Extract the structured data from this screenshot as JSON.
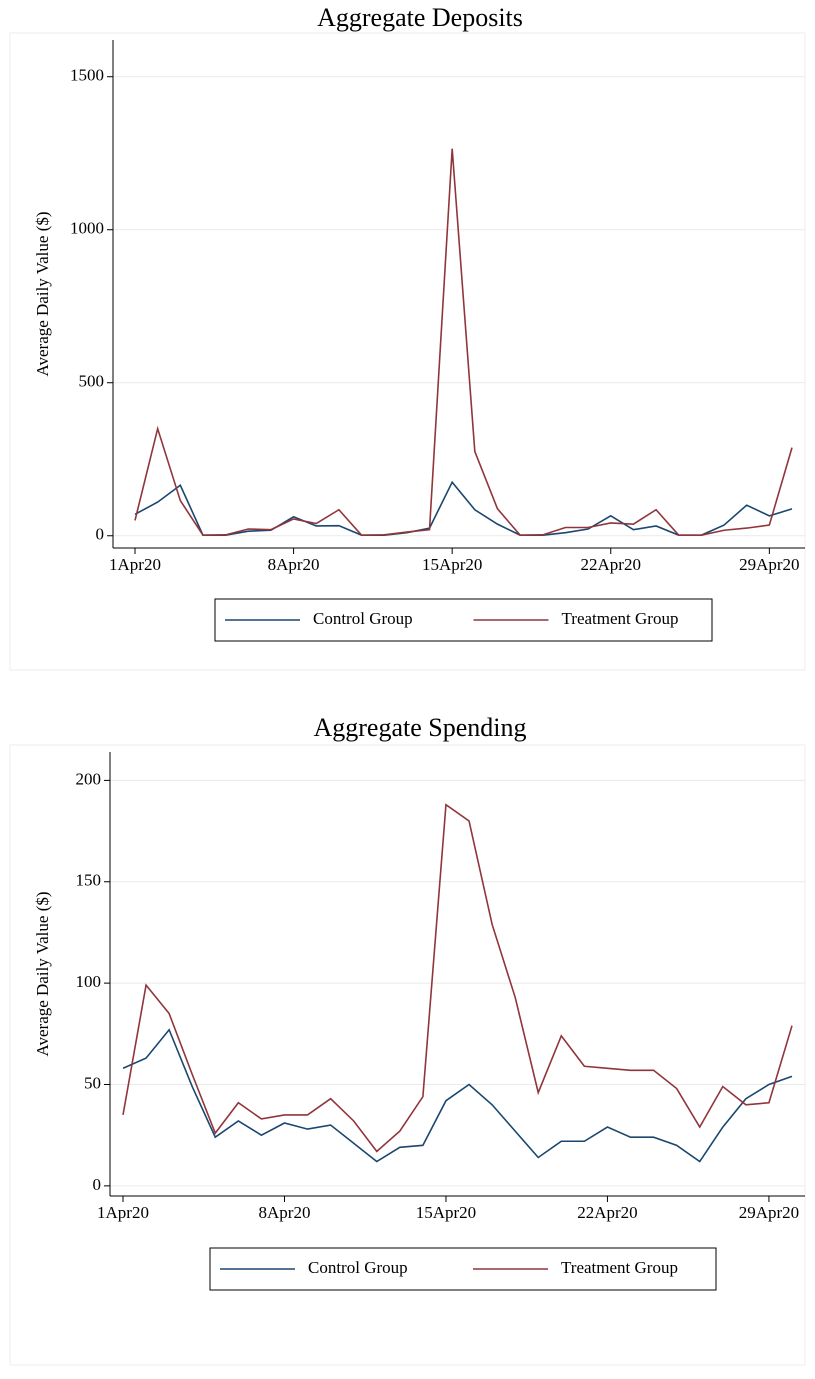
{
  "chart_data": [
    {
      "type": "line",
      "title": "Aggregate Deposits",
      "y_label": "Average Daily Value ($)",
      "categories": [
        "1Apr20",
        null,
        null,
        null,
        null,
        null,
        null,
        "8Apr20",
        null,
        null,
        null,
        null,
        null,
        null,
        "15Apr20",
        null,
        null,
        null,
        null,
        null,
        null,
        "22Apr20",
        null,
        null,
        null,
        null,
        null,
        null,
        "29Apr20",
        null
      ],
      "series": [
        {
          "name": "Control Group",
          "color": "#1a476f",
          "values": [
            70,
            110,
            165,
            2,
            2,
            15,
            18,
            62,
            32,
            33,
            2,
            2,
            10,
            25,
            175,
            85,
            38,
            2,
            2,
            10,
            22,
            65,
            20,
            32,
            2,
            2,
            35,
            100,
            65,
            88
          ]
        },
        {
          "name": "Treatment Group",
          "color": "#90353b",
          "values": [
            50,
            350,
            115,
            2,
            3,
            22,
            20,
            55,
            40,
            85,
            2,
            3,
            12,
            20,
            1265,
            275,
            88,
            2,
            3,
            27,
            27,
            42,
            38,
            85,
            2,
            2,
            18,
            25,
            35,
            288
          ]
        }
      ],
      "ylim": [
        -40,
        1620
      ],
      "yticks": [
        0,
        500,
        1000,
        1500
      ],
      "grid": true,
      "legend": "bottom"
    },
    {
      "type": "line",
      "title": "Aggregate Spending",
      "y_label": "Average Daily Value ($)",
      "categories": [
        "1Apr20",
        null,
        null,
        null,
        null,
        null,
        null,
        "8Apr20",
        null,
        null,
        null,
        null,
        null,
        null,
        "15Apr20",
        null,
        null,
        null,
        null,
        null,
        null,
        "22Apr20",
        null,
        null,
        null,
        null,
        null,
        null,
        "29Apr20",
        null
      ],
      "series": [
        {
          "name": "Control Group",
          "color": "#1a476f",
          "values": [
            58,
            63,
            77,
            49,
            24,
            32,
            25,
            31,
            28,
            30,
            21,
            12,
            19,
            20,
            42,
            50,
            40,
            27,
            14,
            22,
            22,
            29,
            24,
            24,
            20,
            12,
            29,
            43,
            50,
            54
          ]
        },
        {
          "name": "Treatment Group",
          "color": "#90353b",
          "values": [
            35,
            99,
            85,
            55,
            26,
            41,
            33,
            35,
            35,
            43,
            32,
            17,
            27,
            44,
            188,
            180,
            129,
            93,
            46,
            74,
            59,
            58,
            57,
            57,
            48,
            29,
            49,
            40,
            41,
            79
          ]
        }
      ],
      "ylim": [
        -5,
        214
      ],
      "yticks": [
        0,
        50,
        100,
        150,
        200
      ],
      "grid": true,
      "legend": "bottom"
    }
  ]
}
